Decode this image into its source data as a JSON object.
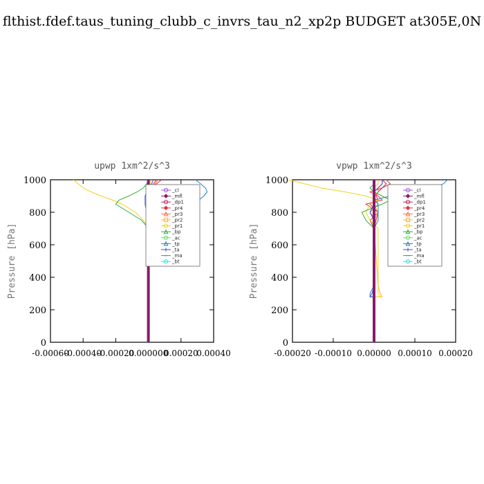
{
  "page": {
    "title": "flthist.fdef.taus_tuning_clubb_c_invrs_tau_n2_xp2p  BUDGET at305E,0N"
  },
  "colors": {
    "_cl": "#9b59d0",
    "_mfl": "#8b1a6b",
    "_dp1": "#c0245a",
    "_pr4": "#e03040",
    "_pr3": "#ff6a3a",
    "_pr2": "#ffb030",
    "_pr1": "#f0d020",
    "_bp": "#30b030",
    "_ac": "#60e060",
    "_tp": "#2080c0",
    "_ta": "#3050d0",
    "_ma": "#20a0a0",
    "_bt": "#30e0e0"
  },
  "chart_data": [
    {
      "type": "line",
      "title": "upwp   1xm^2/s^3",
      "ylabel": "Pressure [hPa]",
      "xlim": [
        -0.0006,
        0.0004
      ],
      "ylim": [
        1000,
        0
      ],
      "yticks": [
        0,
        200,
        400,
        600,
        800,
        1000
      ],
      "ytick_labels": [
        "0",
        "200",
        "400",
        "600",
        "800",
        "1000"
      ],
      "xticks": [
        -0.0006,
        -0.0004,
        -0.0002,
        0.0,
        0.0002,
        0.0004
      ],
      "xtick_labels": [
        "-0.00060",
        "-0.00040",
        "-0.00020",
        "0.000000",
        "0.00020",
        "0.00040"
      ],
      "legend_position": "top-right",
      "pressure": [
        700,
        750,
        800,
        850,
        875,
        900,
        925,
        950,
        975,
        1000
      ],
      "series": [
        {
          "name": "_cl",
          "x": [
            0,
            0,
            0,
            0,
            0,
            0,
            0,
            0,
            0,
            0
          ]
        },
        {
          "name": "_mfl",
          "x": [
            0,
            0,
            0,
            0,
            0,
            0,
            0,
            0,
            0,
            0
          ]
        },
        {
          "name": "_dp1",
          "x": [
            0,
            0,
            1e-05,
            2e-05,
            2e-05,
            2e-05,
            1e-05,
            1e-05,
            5e-05,
            8e-05
          ]
        },
        {
          "name": "_pr4",
          "x": [
            0,
            0,
            3e-05,
            8e-05,
            9e-05,
            8e-05,
            4e-05,
            2e-05,
            3e-05,
            5e-05
          ]
        },
        {
          "name": "_pr3",
          "x": [
            0,
            0,
            1e-05,
            3e-05,
            3e-05,
            2e-05,
            1e-05,
            1e-05,
            4e-05,
            6e-05
          ]
        },
        {
          "name": "_pr2",
          "x": [
            0,
            0,
            0,
            1e-05,
            1e-05,
            1e-05,
            0,
            0,
            1e-05,
            2e-05
          ]
        },
        {
          "name": "_pr1",
          "x": [
            0,
            -3e-05,
            -8e-05,
            -0.00016,
            -0.00022,
            -0.00029,
            -0.00035,
            -0.0004,
            -0.00043,
            -0.00046
          ]
        },
        {
          "name": "_bp",
          "x": [
            0,
            -4e-05,
            -0.00012,
            -0.0002,
            -0.00018,
            -0.00012,
            -7e-05,
            -3e-05,
            -1e-05,
            0
          ]
        },
        {
          "name": "_ac",
          "x": [
            0,
            0,
            0,
            0,
            0,
            0,
            0,
            0,
            0,
            0
          ]
        },
        {
          "name": "_tp",
          "x": [
            0,
            6e-05,
            0.00016,
            0.00026,
            0.00031,
            0.00034,
            0.00036,
            0.00035,
            0.00032,
            0.00029
          ]
        },
        {
          "name": "_ta",
          "x": [
            0,
            0,
            -1e-05,
            -2e-05,
            -2e-05,
            -2e-05,
            -1e-05,
            0,
            2e-05,
            3e-05
          ]
        },
        {
          "name": "_ma",
          "x": [
            0,
            0,
            0,
            0,
            0,
            0,
            0,
            0,
            0,
            0
          ]
        },
        {
          "name": "_bt",
          "x": [
            0,
            0,
            0,
            0,
            0,
            0,
            0,
            0,
            0,
            0
          ]
        }
      ]
    },
    {
      "type": "line",
      "title": "vpwp   1xm^2/s^3",
      "ylabel": "Pressure [hPa]",
      "xlim": [
        -0.0002,
        0.0002
      ],
      "ylim": [
        1000,
        0
      ],
      "yticks": [
        0,
        200,
        400,
        600,
        800,
        1000
      ],
      "ytick_labels": [
        "0",
        "200",
        "400",
        "600",
        "800",
        "1000"
      ],
      "xticks": [
        -0.0002,
        -0.0001,
        0.0,
        0.0001,
        0.0002
      ],
      "xtick_labels": [
        "-0.00020",
        "-0.00010",
        "0.00000",
        "0.00010",
        "0.00020"
      ],
      "legend_position": "top-right",
      "pressure": [
        280,
        300,
        350,
        700,
        750,
        800,
        850,
        875,
        900,
        925,
        950,
        975,
        1000
      ],
      "series": [
        {
          "name": "_cl",
          "x": [
            0,
            0,
            0,
            0,
            0,
            0,
            0,
            0,
            0,
            0,
            0,
            0,
            0
          ]
        },
        {
          "name": "_mfl",
          "x": [
            0,
            0,
            0,
            0,
            0,
            0,
            0,
            0,
            0,
            0,
            0,
            0,
            0
          ]
        },
        {
          "name": "_dp1",
          "x": [
            0,
            0,
            0,
            0,
            5e-06,
            1e-05,
            -1e-05,
            1e-05,
            5e-06,
            1e-05,
            2e-05,
            3e-05,
            2e-05
          ]
        },
        {
          "name": "_pr4",
          "x": [
            0,
            0,
            0,
            0,
            -1e-05,
            1e-05,
            -2e-05,
            2e-05,
            1e-05,
            -1e-05,
            2e-05,
            4e-05,
            3e-05
          ]
        },
        {
          "name": "_pr3",
          "x": [
            0,
            0,
            0,
            0,
            5e-06,
            -1e-05,
            1e-05,
            5e-06,
            0,
            1e-05,
            1e-05,
            2e-05,
            2e-05
          ]
        },
        {
          "name": "_pr2",
          "x": [
            2e-05,
            1.5e-05,
            1e-05,
            0,
            0,
            1e-05,
            0,
            0,
            0,
            0,
            0,
            1e-05,
            1e-05
          ]
        },
        {
          "name": "_pr1",
          "x": [
            1.5e-05,
            1e-05,
            1e-05,
            1e-05,
            -1e-05,
            -2e-05,
            -1e-05,
            1e-05,
            -2e-05,
            -7e-05,
            -0.00013,
            -0.00017,
            -0.00021
          ]
        },
        {
          "name": "_bp",
          "x": [
            0,
            0,
            0,
            0,
            -2e-05,
            -3e-05,
            2e-05,
            4e-05,
            2e-05,
            0,
            -1e-05,
            0,
            0
          ]
        },
        {
          "name": "_ac",
          "x": [
            0,
            0,
            0,
            0,
            0,
            0,
            0,
            0,
            0,
            0,
            0,
            0,
            0
          ]
        },
        {
          "name": "_tp",
          "x": [
            -1e-05,
            -1e-05,
            0,
            0,
            1e-05,
            1e-05,
            1e-05,
            0,
            4e-05,
            0.0001,
            0.00014,
            0.00017,
            0.00018
          ]
        },
        {
          "name": "_ta",
          "x": [
            -1e-05,
            -5e-06,
            0,
            0,
            0,
            -1e-05,
            0,
            0,
            0,
            0,
            1e-05,
            2e-05,
            2e-05
          ]
        },
        {
          "name": "_ma",
          "x": [
            0,
            0,
            0,
            0,
            0,
            0,
            0,
            0,
            0,
            0,
            0,
            0,
            0
          ]
        },
        {
          "name": "_bt",
          "x": [
            0,
            0,
            0,
            0,
            0,
            0,
            0,
            0,
            0,
            0,
            0,
            0,
            0
          ]
        }
      ]
    }
  ]
}
